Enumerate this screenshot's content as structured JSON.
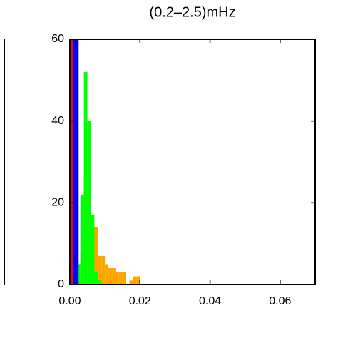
{
  "chart_data": {
    "type": "histogram",
    "title": "(0.2–2.5)mHz",
    "xlim": [
      0,
      0.07
    ],
    "ylim": [
      0,
      60
    ],
    "xticks": [
      {
        "value": 0,
        "label": "0.00"
      },
      {
        "value": 0.02,
        "label": "0.02"
      },
      {
        "value": 0.04,
        "label": "0.04"
      },
      {
        "value": 0.06,
        "label": "0.06"
      }
    ],
    "yticks": [
      0,
      20,
      40,
      60
    ],
    "series": [
      {
        "color": "#ffa500",
        "bins": [
          0,
          0.001,
          0.002,
          0.003,
          0.004,
          0.005,
          0.006,
          0.007,
          0.008,
          0.009,
          0.01,
          0.011,
          0.012,
          0.013,
          0.014,
          0.015,
          0.016,
          0.017,
          0.018,
          0.019,
          0.02
        ],
        "values": [
          0,
          0,
          0,
          8,
          26,
          24,
          14,
          14,
          7,
          7,
          5,
          4,
          4,
          3,
          3,
          3,
          0,
          1,
          2,
          2
        ]
      },
      {
        "color": "#00ff00",
        "bins": [
          0,
          0.001,
          0.002,
          0.003,
          0.004,
          0.005,
          0.006,
          0.007,
          0.008,
          0.009
        ],
        "values": [
          0,
          0,
          5,
          22,
          52,
          40,
          17,
          3,
          1
        ]
      },
      {
        "color": "#ff0000",
        "bins": [
          0,
          0.001
        ],
        "values": [
          60
        ]
      },
      {
        "color": "#0000ff",
        "bins": [
          0.001,
          0.0025
        ],
        "values": [
          60
        ]
      }
    ]
  }
}
